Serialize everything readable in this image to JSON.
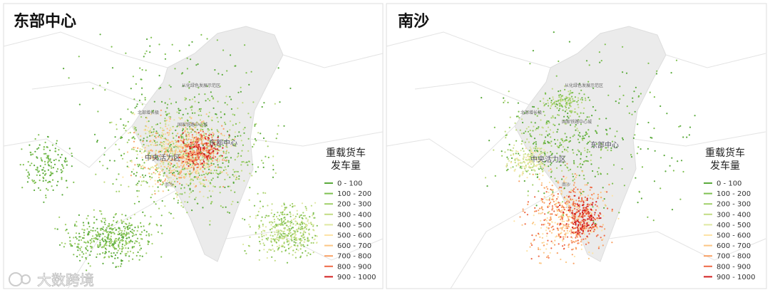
{
  "watermark": "大数跨境",
  "legend": {
    "title_lines": [
      "重载货车",
      "发车量"
    ],
    "items": [
      {
        "label": "0 - 100",
        "color": "#5aaa3c"
      },
      {
        "label": "100 - 200",
        "color": "#7fc050"
      },
      {
        "label": "200 - 300",
        "color": "#a2d06a"
      },
      {
        "label": "300 - 400",
        "color": "#c2dc84"
      },
      {
        "label": "400 - 500",
        "color": "#dfe8a2"
      },
      {
        "label": "500 - 600",
        "color": "#fde3a6"
      },
      {
        "label": "600 - 700",
        "color": "#fcc684"
      },
      {
        "label": "700 - 800",
        "color": "#f8a064"
      },
      {
        "label": "800 - 900",
        "color": "#ee6a46"
      },
      {
        "label": "900 - 1000",
        "color": "#d21e1e"
      }
    ]
  },
  "panels": [
    {
      "title": "东部中心",
      "labels": [
        "从化绿色发展示范区",
        "北部增长极",
        "国家铁路中心城",
        "东部中心",
        "中央活力区",
        "南沙"
      ]
    },
    {
      "title": "南沙",
      "labels": [
        "从化绿色发展示范区",
        "北部增长极",
        "国家铁路中心城",
        "东部中心",
        "中央活力区",
        "南沙"
      ]
    }
  ]
}
